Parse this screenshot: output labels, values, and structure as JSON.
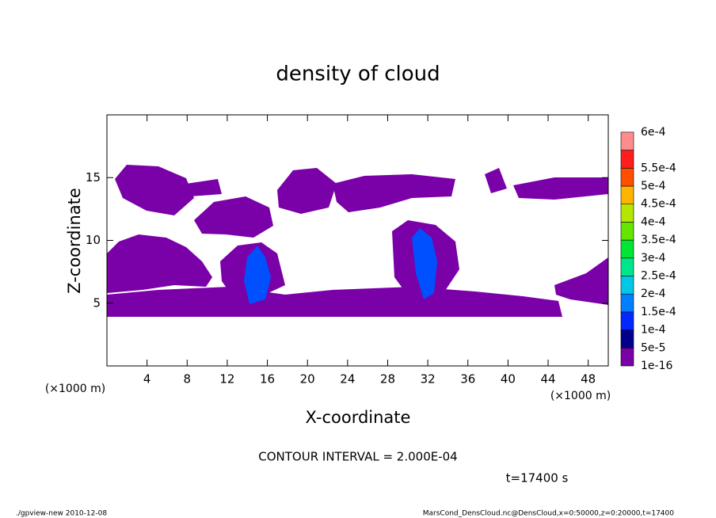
{
  "chart_data": {
    "type": "contour",
    "title": "density of cloud",
    "x_label": "X-coordinate",
    "y_label": "Z-coordinate",
    "x_unit": "(×1000 m)",
    "y_unit": "(×1000 m)",
    "xlim": [
      0,
      50
    ],
    "xticks": [
      4,
      8,
      12,
      16,
      20,
      24,
      28,
      32,
      36,
      40,
      44,
      48
    ],
    "ylim": [
      0,
      20
    ],
    "yticks": [
      5,
      10,
      15
    ],
    "annotation": "CONTOUR INTERVAL = 2.000E-04",
    "time_label": "t=17400 s",
    "footer_left": "./gpview-new   2010-12-08",
    "footer_right": "MarsCond_DensCloud.nc@DensCloud,x=0:50000,z=0:20000,t=17400",
    "levels": [
      {
        "value": 1e-16,
        "label": "1e-16"
      },
      {
        "value": 5e-05,
        "label": "5e-5"
      },
      {
        "value": 0.0001,
        "label": "1e-4"
      },
      {
        "value": 0.00015,
        "label": "1.5e-4"
      },
      {
        "value": 0.0002,
        "label": "2e-4"
      },
      {
        "value": 0.00025,
        "label": "2.5e-4"
      },
      {
        "value": 0.0003,
        "label": "3e-4"
      },
      {
        "value": 0.00035,
        "label": "3.5e-4"
      },
      {
        "value": 0.0004,
        "label": "4e-4"
      },
      {
        "value": 0.00045,
        "label": "4.5e-4"
      },
      {
        "value": 0.0005,
        "label": "5e-4"
      },
      {
        "value": 0.00055,
        "label": "5.5e-4"
      },
      {
        "value": 0.0006,
        "label": "6e-4"
      }
    ],
    "level_colors": [
      "#7a00a8",
      "#00008b",
      "#0028ff",
      "#0080ff",
      "#00c8e6",
      "#00e68c",
      "#00e632",
      "#64e600",
      "#b4e600",
      "#ffb400",
      "#ff5000",
      "#ff1e1e",
      "#ff8c8c"
    ]
  }
}
